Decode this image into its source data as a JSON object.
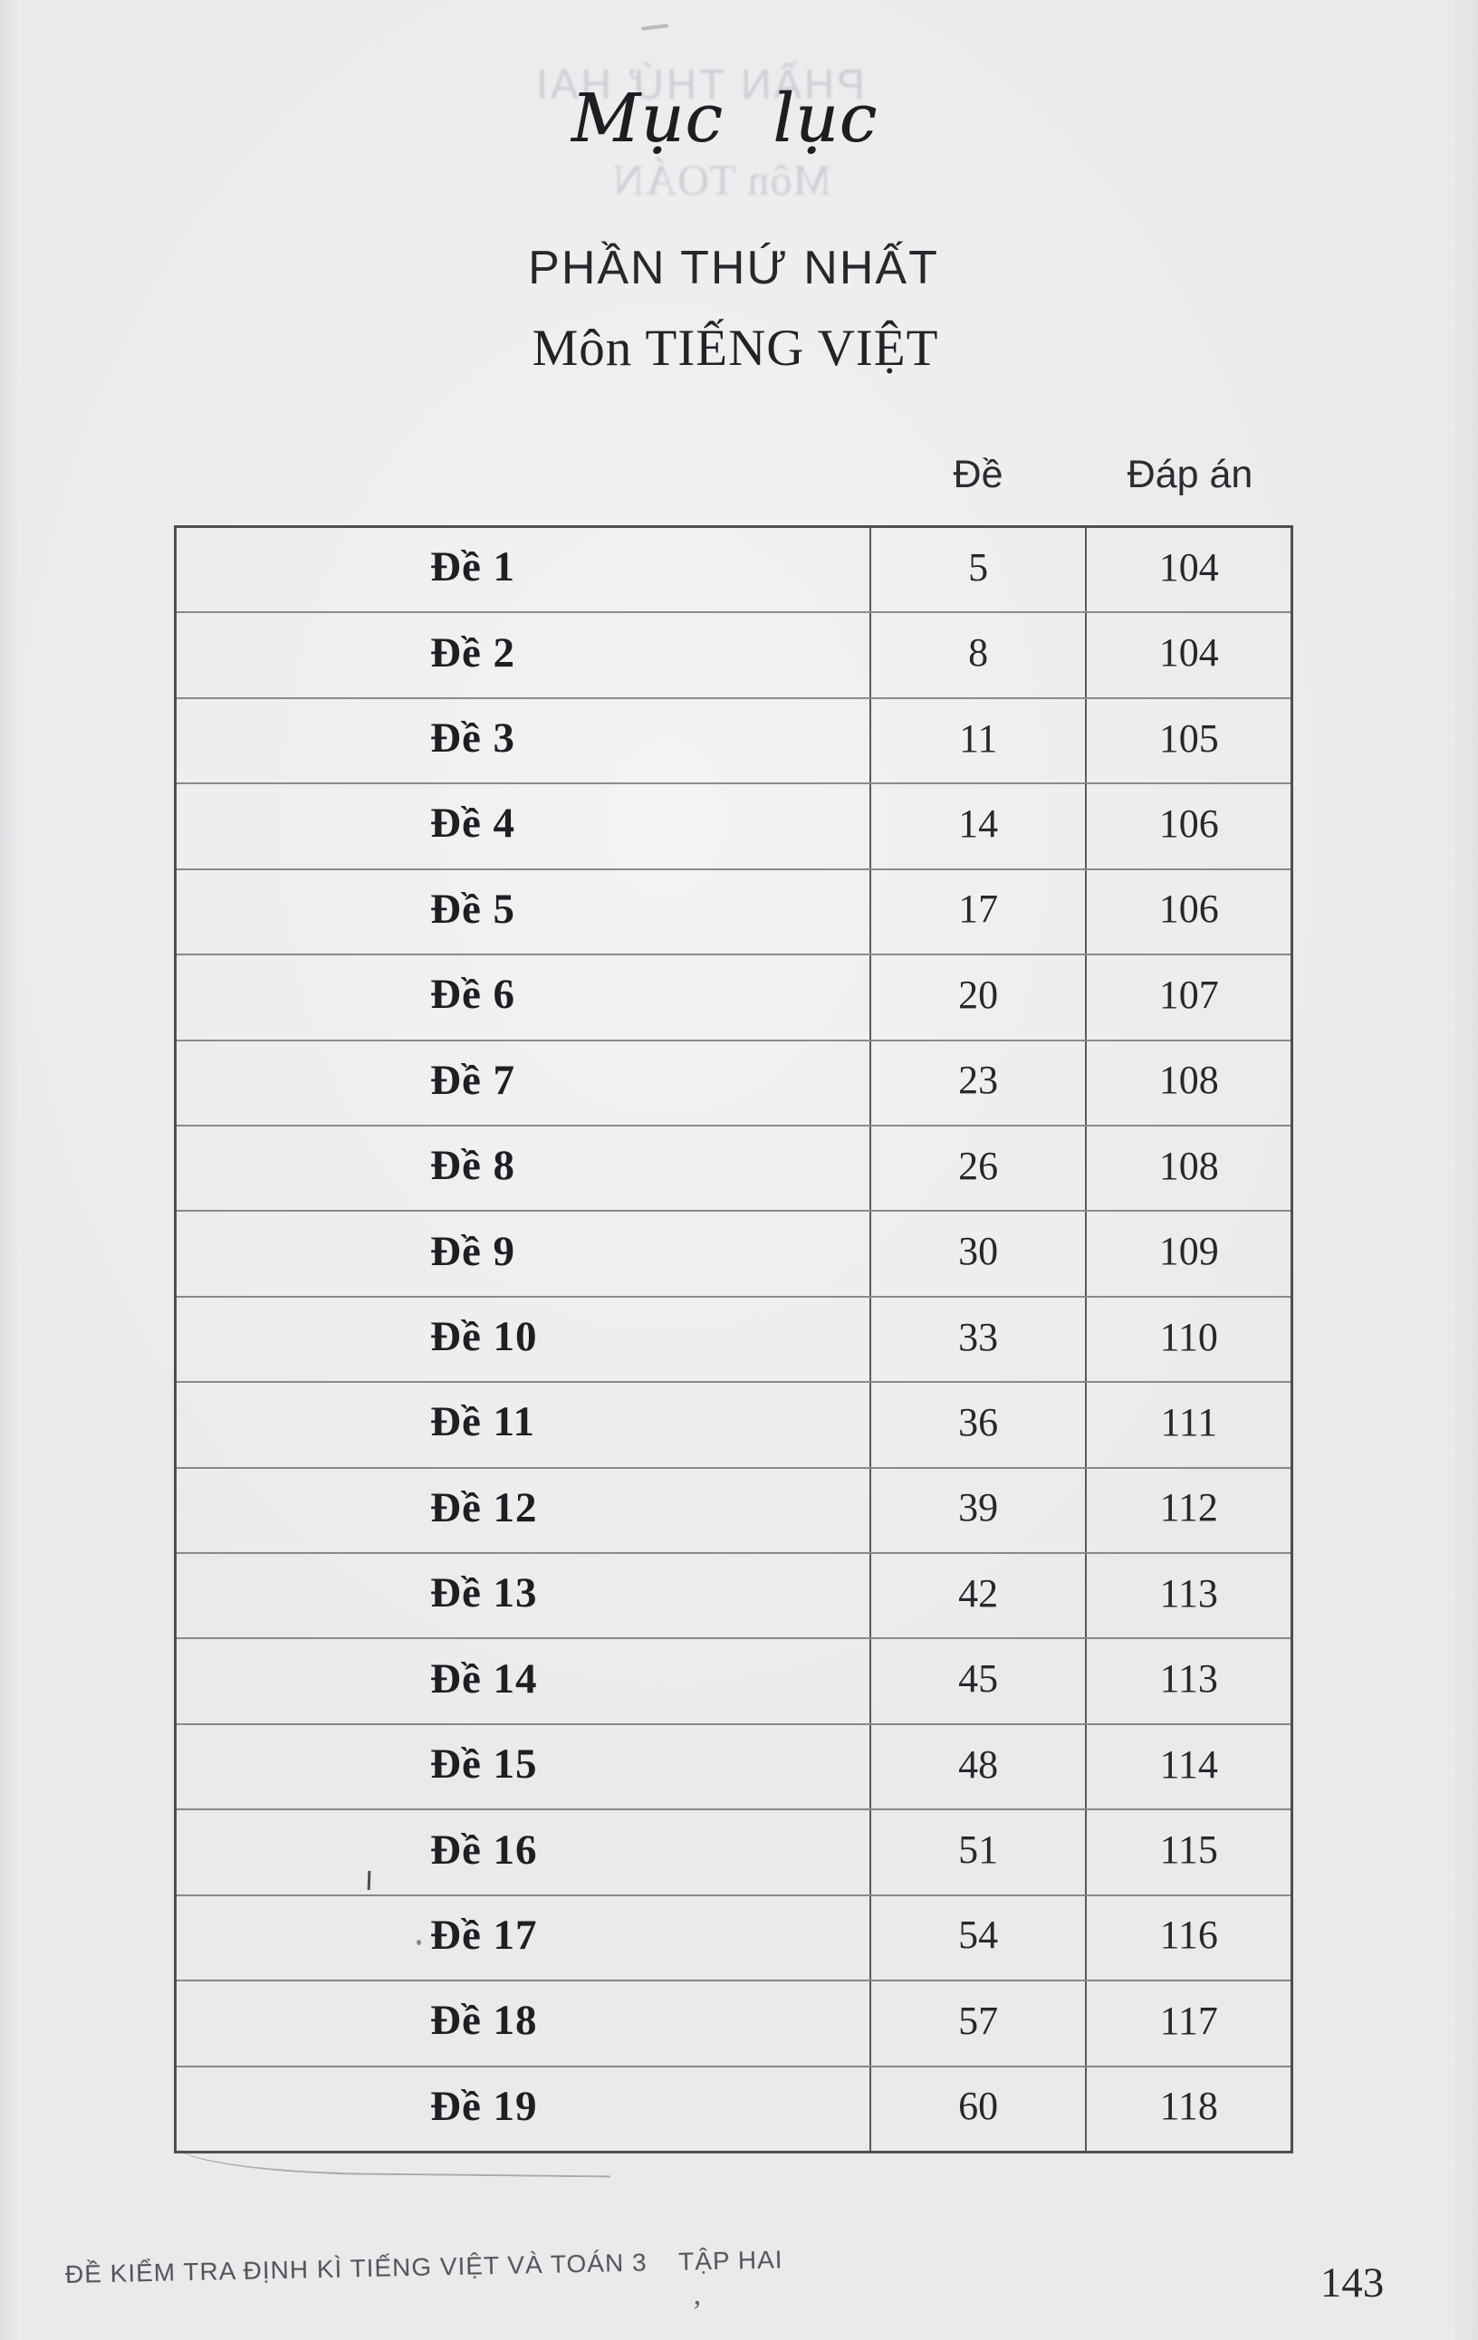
{
  "page": {
    "title": "Mục lục",
    "part_heading": "PHẦN THỨ NHẤT",
    "subject_heading": "Môn TIẾNG VIỆT",
    "footer_text": "ĐỀ KIỂM TRA ĐỊNH KÌ TIẾNG VIỆT VÀ TOÁN 3    TẬP HAI",
    "page_number": "143"
  },
  "table": {
    "headers": {
      "de": "Đề",
      "dap_an": "Đáp án"
    },
    "rows": [
      {
        "label": "Đề 1",
        "de": "5",
        "dap_an": "104"
      },
      {
        "label": "Đề 2",
        "de": "8",
        "dap_an": "104"
      },
      {
        "label": "Đề 3",
        "de": "11",
        "dap_an": "105"
      },
      {
        "label": "Đề 4",
        "de": "14",
        "dap_an": "106"
      },
      {
        "label": "Đề 5",
        "de": "17",
        "dap_an": "106"
      },
      {
        "label": "Đề 6",
        "de": "20",
        "dap_an": "107"
      },
      {
        "label": "Đề 7",
        "de": "23",
        "dap_an": "108"
      },
      {
        "label": "Đề 8",
        "de": "26",
        "dap_an": "108"
      },
      {
        "label": "Đề 9",
        "de": "30",
        "dap_an": "109"
      },
      {
        "label": "Đề 10",
        "de": "33",
        "dap_an": "110"
      },
      {
        "label": "Đề 11",
        "de": "36",
        "dap_an": "111"
      },
      {
        "label": "Đề 12",
        "de": "39",
        "dap_an": "112"
      },
      {
        "label": "Đề 13",
        "de": "42",
        "dap_an": "113"
      },
      {
        "label": "Đề 14",
        "de": "45",
        "dap_an": "113"
      },
      {
        "label": "Đề 15",
        "de": "48",
        "dap_an": "114"
      },
      {
        "label": "Đề 16",
        "de": "51",
        "dap_an": "115"
      },
      {
        "label": "Đề 17",
        "de": "54",
        "dap_an": "116"
      },
      {
        "label": "Đề 18",
        "de": "57",
        "dap_an": "117"
      },
      {
        "label": "Đề 19",
        "de": "60",
        "dap_an": "118"
      }
    ]
  },
  "bleed_through": {
    "line1": "PHẦN THỨ HAI",
    "line2": "Môn TOÁN"
  },
  "artifacts": {
    "comma_glyph": "’"
  },
  "colors": {
    "paper": "#e9eaec",
    "ink": "#232427",
    "table_line": "#37383c",
    "ghost": "#7c828e"
  }
}
